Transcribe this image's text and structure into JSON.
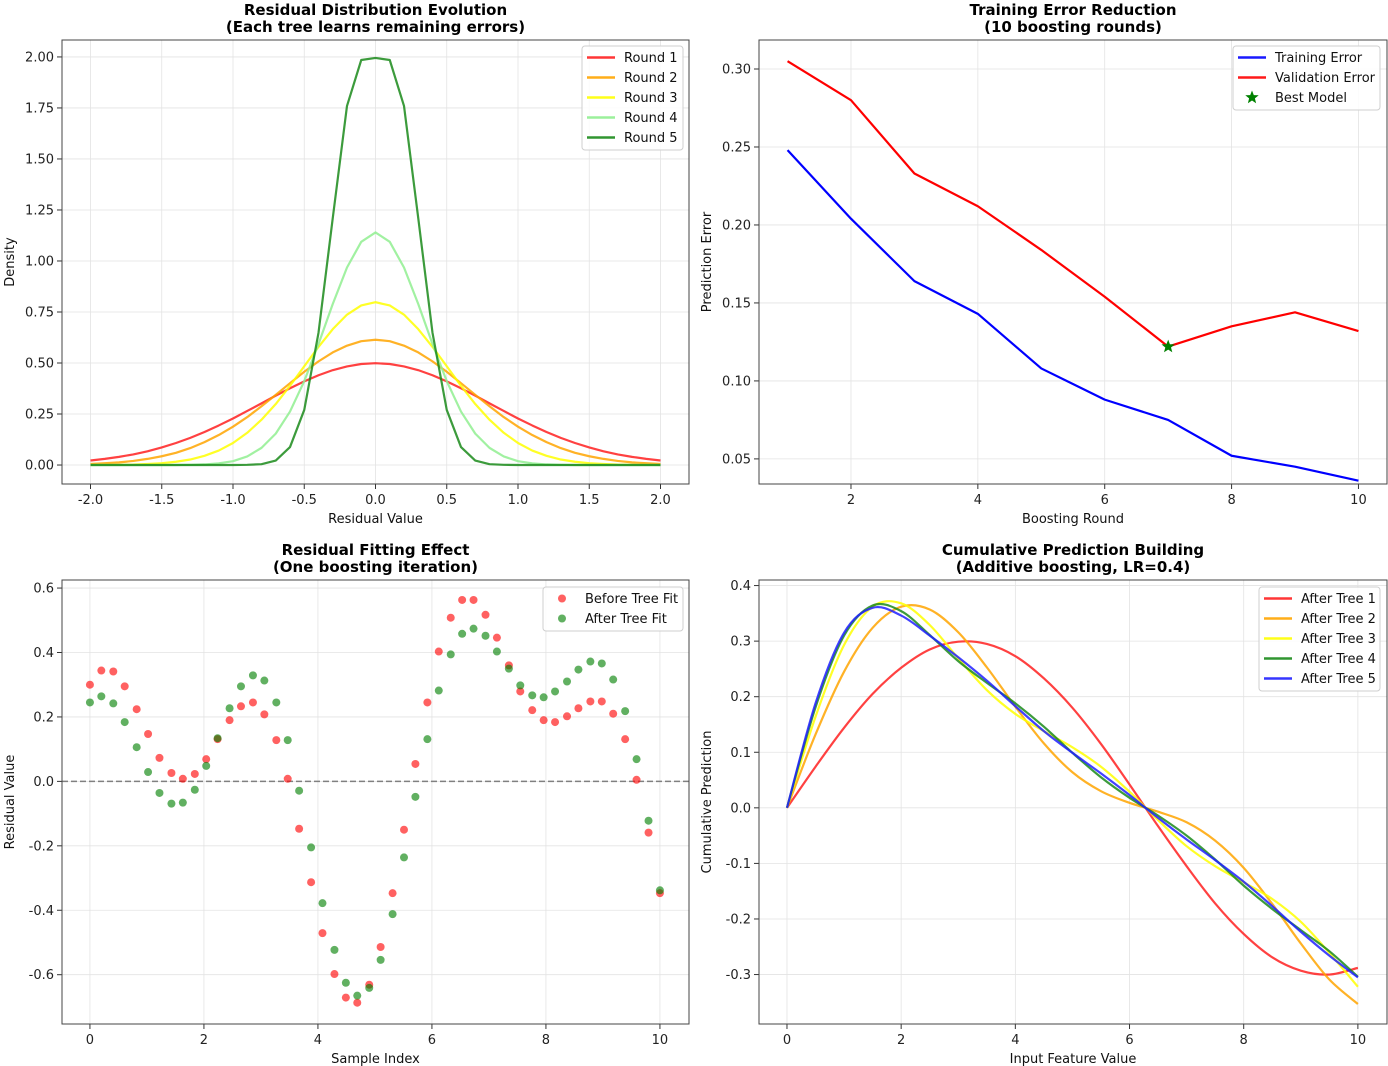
{
  "chart_data": [
    {
      "type": "line",
      "title": [
        "Residual Distribution Evolution",
        "(Each tree learns remaining errors)"
      ],
      "xlabel": "Residual Value",
      "ylabel": "Density",
      "xlim": [
        -2.2,
        2.2
      ],
      "ylim": [
        -0.093,
        2.083
      ],
      "grid": true,
      "legend_placement": "top-right",
      "xticks": [
        -2.0,
        -1.5,
        -1.0,
        -0.5,
        0.0,
        0.5,
        1.0,
        1.5,
        2.0
      ],
      "xticklabels": [
        "-2.0",
        "-1.5",
        "-1.0",
        "-0.5",
        "0.0",
        "0.5",
        "1.0",
        "1.5",
        "2.0"
      ],
      "yticks": [
        0,
        0.25,
        0.5,
        0.75,
        1.0,
        1.25,
        1.5,
        1.75,
        2.0
      ],
      "yticklabels": [
        "0.00",
        "0.25",
        "0.50",
        "0.75",
        "1.00",
        "1.25",
        "1.50",
        "1.75",
        "2.00"
      ],
      "x": [
        -2.0,
        -1.9,
        -1.8,
        -1.7,
        -1.6,
        -1.5,
        -1.4,
        -1.3,
        -1.2,
        -1.1,
        -1.0,
        -0.9,
        -0.8,
        -0.7,
        -0.6,
        -0.5,
        -0.4,
        -0.3,
        -0.2,
        -0.1,
        0.0,
        0.1,
        0.2,
        0.3,
        0.4,
        0.5,
        0.6,
        0.7,
        0.8,
        0.9,
        1.0,
        1.1,
        1.2,
        1.3,
        1.4,
        1.5,
        1.6,
        1.7,
        1.8,
        1.9,
        2.0
      ],
      "series": [
        {
          "name": "Round 1",
          "color": "#ff2020",
          "values": [
            0.022,
            0.03,
            0.04,
            0.052,
            0.067,
            0.086,
            0.108,
            0.133,
            0.162,
            0.194,
            0.228,
            0.265,
            0.302,
            0.34,
            0.376,
            0.41,
            0.44,
            0.465,
            0.483,
            0.495,
            0.499,
            0.495,
            0.483,
            0.465,
            0.44,
            0.41,
            0.376,
            0.34,
            0.302,
            0.265,
            0.228,
            0.194,
            0.162,
            0.133,
            0.108,
            0.086,
            0.067,
            0.052,
            0.04,
            0.03,
            0.022
          ]
        },
        {
          "name": "Round 2",
          "color": "#ffa500",
          "values": [
            0.005,
            0.009,
            0.013,
            0.02,
            0.03,
            0.043,
            0.06,
            0.083,
            0.112,
            0.147,
            0.188,
            0.235,
            0.288,
            0.344,
            0.401,
            0.457,
            0.508,
            0.552,
            0.585,
            0.607,
            0.614,
            0.607,
            0.585,
            0.552,
            0.508,
            0.457,
            0.401,
            0.344,
            0.288,
            0.235,
            0.188,
            0.147,
            0.112,
            0.083,
            0.06,
            0.043,
            0.03,
            0.02,
            0.013,
            0.009,
            0.005
          ]
        },
        {
          "name": "Round 3",
          "color": "#ffff00",
          "values": [
            0,
            0.001,
            0.001,
            0.002,
            0.005,
            0.009,
            0.016,
            0.027,
            0.045,
            0.071,
            0.108,
            0.158,
            0.222,
            0.299,
            0.388,
            0.484,
            0.579,
            0.666,
            0.737,
            0.782,
            0.798,
            0.782,
            0.737,
            0.666,
            0.579,
            0.484,
            0.388,
            0.299,
            0.222,
            0.158,
            0.108,
            0.071,
            0.045,
            0.027,
            0.016,
            0.009,
            0.005,
            0.002,
            0.001,
            0.001,
            0
          ]
        },
        {
          "name": "Round 4",
          "color": "#90ee90",
          "values": [
            0,
            0,
            0,
            0,
            0,
            0,
            0,
            0.001,
            0.003,
            0.008,
            0.019,
            0.042,
            0.084,
            0.154,
            0.262,
            0.411,
            0.593,
            0.789,
            0.968,
            1.094,
            1.14,
            1.094,
            0.968,
            0.789,
            0.593,
            0.411,
            0.262,
            0.154,
            0.084,
            0.042,
            0.019,
            0.008,
            0.003,
            0.001,
            0,
            0,
            0,
            0,
            0,
            0,
            0
          ]
        },
        {
          "name": "Round 5",
          "color": "#1a8a1a",
          "values": [
            0,
            0,
            0,
            0,
            0,
            0,
            0,
            0,
            0,
            0,
            0,
            0.001,
            0.004,
            0.022,
            0.088,
            0.27,
            0.648,
            1.21,
            1.76,
            1.985,
            1.995,
            1.985,
            1.76,
            1.21,
            0.648,
            0.27,
            0.088,
            0.022,
            0.004,
            0.001,
            0,
            0,
            0,
            0,
            0,
            0,
            0,
            0,
            0,
            0,
            0
          ]
        }
      ]
    },
    {
      "type": "line",
      "title": [
        "Training Error Reduction",
        "(10 boosting rounds)"
      ],
      "xlabel": "Boosting Round",
      "ylabel": "Prediction Error",
      "xlim": [
        0.55,
        10.45
      ],
      "ylim": [
        0.0339,
        0.3186
      ],
      "grid": true,
      "legend_placement": "top-right",
      "xticks": [
        2,
        4,
        6,
        8,
        10
      ],
      "xticklabels": [
        "2",
        "4",
        "6",
        "8",
        "10"
      ],
      "yticks": [
        0.05,
        0.1,
        0.15,
        0.2,
        0.25,
        0.3
      ],
      "yticklabels": [
        "0.05",
        "0.10",
        "0.15",
        "0.20",
        "0.25",
        "0.30"
      ],
      "x": [
        1,
        2,
        3,
        4,
        5,
        6,
        7,
        8,
        9,
        10
      ],
      "series": [
        {
          "name": "Training Error",
          "color": "#0000ff",
          "values": [
            0.248,
            0.204,
            0.164,
            0.143,
            0.108,
            0.088,
            0.075,
            0.052,
            0.045,
            0.036
          ]
        },
        {
          "name": "Validation Error",
          "color": "#ff0000",
          "values": [
            0.305,
            0.28,
            0.233,
            0.212,
            0.184,
            0.154,
            0.122,
            0.135,
            0.144,
            0.132
          ]
        }
      ],
      "markers": [
        {
          "name": "Best Model",
          "x": 7,
          "y": 0.122,
          "color": "#008000",
          "shape": "star"
        }
      ]
    },
    {
      "type": "scatter",
      "title": [
        "Residual Fitting Effect",
        "(One boosting iteration)"
      ],
      "xlabel": "Sample Index",
      "ylabel": "Residual Value",
      "xlim": [
        -0.49,
        10.51
      ],
      "ylim": [
        -0.753,
        0.625
      ],
      "grid": true,
      "legend_placement": "top-right",
      "reference_line": {
        "y": 0,
        "style": "dashed",
        "color": "#808080"
      },
      "xticks": [
        0,
        2,
        4,
        6,
        8,
        10
      ],
      "xticklabels": [
        "0",
        "2",
        "4",
        "6",
        "8",
        "10"
      ],
      "yticks": [
        -0.6,
        -0.4,
        -0.2,
        0.0,
        0.2,
        0.4,
        0.6
      ],
      "yticklabels": [
        "-0.6",
        "-0.4",
        "-0.2",
        "0.0",
        "0.2",
        "0.4",
        "0.6"
      ],
      "x": [
        0,
        0.2,
        0.41,
        0.61,
        0.82,
        1.02,
        1.22,
        1.43,
        1.63,
        1.84,
        2.04,
        2.24,
        2.45,
        2.65,
        2.86,
        3.06,
        3.27,
        3.47,
        3.67,
        3.88,
        4.08,
        4.29,
        4.49,
        4.69,
        4.9,
        5.1,
        5.31,
        5.51,
        5.71,
        5.92,
        6.12,
        6.33,
        6.53,
        6.73,
        6.94,
        7.14,
        7.35,
        7.55,
        7.76,
        7.96,
        8.16,
        8.37,
        8.57,
        8.78,
        8.98,
        9.18,
        9.39,
        9.59,
        9.8,
        10
      ],
      "series": [
        {
          "name": "Before Tree Fit",
          "color": "#ff0000",
          "values": [
            0.3,
            0.344,
            0.341,
            0.295,
            0.224,
            0.147,
            0.073,
            0.026,
            0.008,
            0.023,
            0.069,
            0.131,
            0.19,
            0.233,
            0.245,
            0.208,
            0.128,
            0.008,
            -0.147,
            -0.313,
            -0.471,
            -0.598,
            -0.671,
            -0.687,
            -0.631,
            -0.514,
            -0.347,
            -0.15,
            0.054,
            0.245,
            0.403,
            0.508,
            0.563,
            0.563,
            0.517,
            0.446,
            0.36,
            0.279,
            0.221,
            0.19,
            0.184,
            0.202,
            0.227,
            0.248,
            0.248,
            0.21,
            0.131,
            0.005,
            -0.159,
            -0.347
          ]
        },
        {
          "name": "After Tree Fit",
          "color": "#008000",
          "values": [
            0.245,
            0.264,
            0.242,
            0.184,
            0.106,
            0.029,
            -0.036,
            -0.069,
            -0.066,
            -0.026,
            0.048,
            0.134,
            0.227,
            0.295,
            0.329,
            0.313,
            0.245,
            0.128,
            -0.029,
            -0.205,
            -0.378,
            -0.523,
            -0.625,
            -0.665,
            -0.641,
            -0.554,
            -0.412,
            -0.236,
            -0.048,
            0.131,
            0.282,
            0.394,
            0.458,
            0.474,
            0.452,
            0.403,
            0.35,
            0.298,
            0.267,
            0.261,
            0.279,
            0.31,
            0.347,
            0.372,
            0.366,
            0.316,
            0.218,
            0.069,
            -0.122,
            -0.338
          ]
        }
      ]
    },
    {
      "type": "line",
      "title": [
        "Cumulative Prediction Building",
        "(Additive boosting, LR=0.4)"
      ],
      "xlabel": "Input Feature Value",
      "ylabel": "Cumulative Prediction",
      "xlim": [
        -0.49,
        10.51
      ],
      "ylim": [
        -0.389,
        0.41
      ],
      "grid": true,
      "legend_placement": "top-right",
      "xticks": [
        0,
        2,
        4,
        6,
        8,
        10
      ],
      "xticklabels": [
        "0",
        "2",
        "4",
        "6",
        "8",
        "10"
      ],
      "yticks": [
        -0.3,
        -0.2,
        -0.1,
        0.0,
        0.1,
        0.2,
        0.3,
        0.4
      ],
      "yticklabels": [
        "-0.3",
        "-0.2",
        "-0.1",
        "0.0",
        "0.1",
        "0.2",
        "0.3",
        "0.4"
      ],
      "x": [
        0,
        0.5,
        1,
        1.5,
        2,
        2.5,
        3,
        3.5,
        4,
        4.5,
        5,
        5.5,
        6,
        6.5,
        7,
        7.5,
        8,
        8.5,
        9,
        9.5,
        10
      ],
      "series": [
        {
          "name": "After Tree 1",
          "color": "#ff2020",
          "values": [
            0,
            0.074,
            0.144,
            0.205,
            0.252,
            0.285,
            0.299,
            0.295,
            0.273,
            0.233,
            0.18,
            0.115,
            0.042,
            -0.033,
            -0.105,
            -0.172,
            -0.227,
            -0.269,
            -0.293,
            -0.3,
            -0.288
          ]
        },
        {
          "name": "After Tree 2",
          "color": "#ffa500",
          "values": [
            0,
            0.132,
            0.245,
            0.324,
            0.362,
            0.357,
            0.316,
            0.253,
            0.182,
            0.116,
            0.064,
            0.03,
            0.009,
            -0.007,
            -0.026,
            -0.059,
            -0.108,
            -0.173,
            -0.244,
            -0.309,
            -0.353
          ]
        },
        {
          "name": "After Tree 3",
          "color": "#ffff00",
          "values": [
            0,
            0.164,
            0.293,
            0.362,
            0.368,
            0.329,
            0.269,
            0.212,
            0.169,
            0.138,
            0.109,
            0.074,
            0.029,
            -0.022,
            -0.069,
            -0.105,
            -0.134,
            -0.164,
            -0.205,
            -0.261,
            -0.322
          ]
        },
        {
          "name": "After Tree 4",
          "color": "#1a8a1a",
          "values": [
            0,
            0.181,
            0.31,
            0.364,
            0.354,
            0.311,
            0.264,
            0.225,
            0.188,
            0.146,
            0.099,
            0.055,
            0.018,
            -0.014,
            -0.05,
            -0.093,
            -0.14,
            -0.182,
            -0.22,
            -0.258,
            -0.304
          ]
        },
        {
          "name": "After Tree 5",
          "color": "#2020ff",
          "values": [
            0,
            0.188,
            0.315,
            0.36,
            0.346,
            0.31,
            0.271,
            0.229,
            0.183,
            0.138,
            0.099,
            0.062,
            0.023,
            -0.018,
            -0.057,
            -0.094,
            -0.133,
            -0.177,
            -0.223,
            -0.266,
            -0.305
          ]
        }
      ]
    }
  ]
}
